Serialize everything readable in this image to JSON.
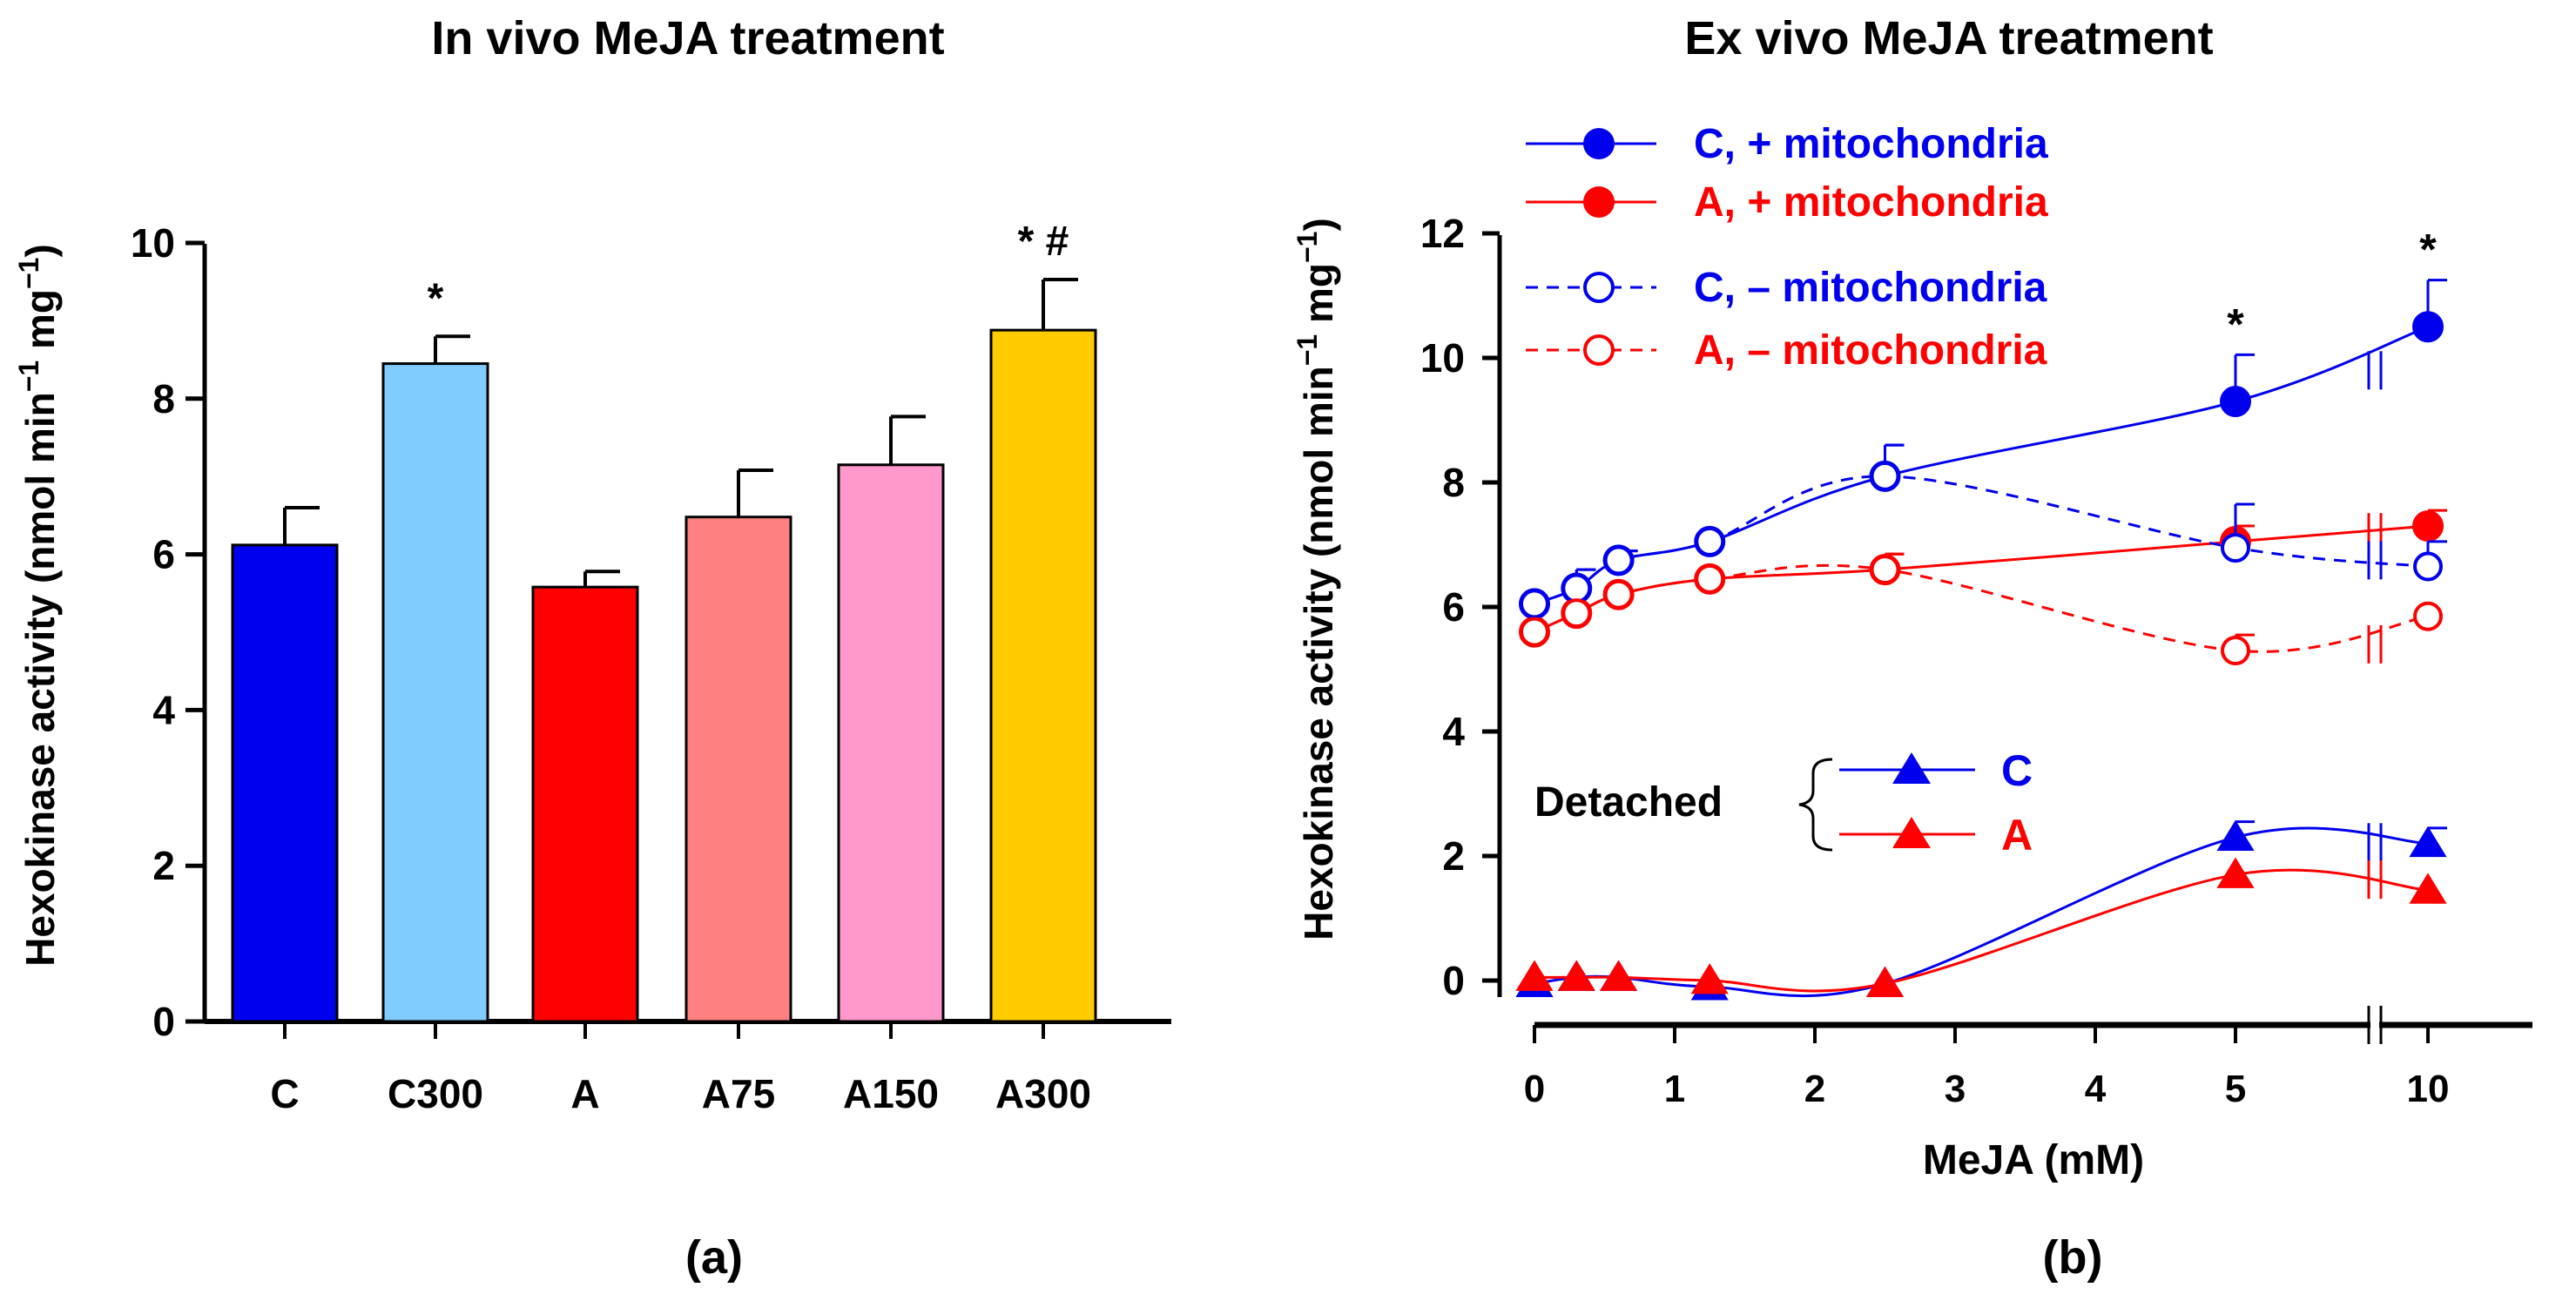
{
  "colors": {
    "blue": "#0000ee",
    "red": "#ff0000",
    "black": "#000000"
  },
  "panel_labels": [
    "(a)",
    "(b)"
  ],
  "chart_data": [
    {
      "type": "bar",
      "title": "In vivo MeJA treatment",
      "xlabel": "",
      "ylabel": "Hexokinase activity (nmol min",
      "ylabel_sup1": "−1",
      "ylabel_mid": " mg",
      "ylabel_sup2": "−1",
      "ylabel_end": ")",
      "ylim": [
        0,
        10
      ],
      "yticks": [
        0,
        2,
        4,
        6,
        8,
        10
      ],
      "categories": [
        "C",
        "C300",
        "A",
        "A75",
        "A150",
        "A300"
      ],
      "values": [
        6.12,
        8.45,
        5.58,
        6.48,
        7.15,
        8.88
      ],
      "errors": [
        0.48,
        0.35,
        0.2,
        0.6,
        0.62,
        0.65
      ],
      "bar_colors": [
        "#0000ee",
        "#80ccff",
        "#ff0000",
        "#ff8080",
        "#ff99cc",
        "#ffcc00"
      ],
      "annotations": [
        "",
        "*",
        "",
        "",
        "",
        "* #"
      ],
      "panel_label": "(a)"
    },
    {
      "type": "line",
      "title": "Ex vivo MeJA treatment",
      "xlabel": "MeJA (mM)",
      "ylabel": "Hexokinase activity (nmol min",
      "ylabel_sup1": "−1",
      "ylabel_mid": " mg",
      "ylabel_sup2": "−1",
      "ylabel_end": ")",
      "ylim": [
        -0.5,
        12
      ],
      "yticks": [
        0,
        2,
        4,
        6,
        8,
        10,
        12
      ],
      "xticks": [
        "0",
        "1",
        "2",
        "3",
        "4",
        "5",
        "10"
      ],
      "x_axis_break_between": [
        5,
        10
      ],
      "x": [
        0,
        0.3,
        0.6,
        1.25,
        2.5,
        5,
        10
      ],
      "series": [
        {
          "name": "C, + mitochondria",
          "style": "solid",
          "marker": "filled-circle",
          "color": "#0000ee",
          "values": [
            6.05,
            6.3,
            6.75,
            7.05,
            8.1,
            9.3,
            10.5
          ],
          "errors": [
            0.1,
            0.3,
            0.15,
            0.1,
            0.5,
            0.75,
            0.75
          ]
        },
        {
          "name": "A, + mitochondria",
          "style": "solid",
          "marker": "filled-circle",
          "color": "#ff0000",
          "values": [
            5.6,
            5.9,
            6.2,
            6.45,
            6.6,
            7.05,
            7.3
          ],
          "errors": [
            0.1,
            0.1,
            0.1,
            0.1,
            0.25,
            0.25,
            0.25
          ]
        },
        {
          "name": "C, – mitochondria",
          "style": "dashed",
          "marker": "open-circle",
          "color": "#0000ee",
          "values": [
            6.05,
            6.3,
            6.75,
            7.05,
            8.1,
            6.95,
            6.65
          ],
          "errors": [
            0.1,
            0.3,
            0.15,
            0.1,
            0.5,
            0.7,
            0.4
          ]
        },
        {
          "name": "A, – mitochondria",
          "style": "dashed",
          "marker": "open-circle",
          "color": "#ff0000",
          "values": [
            5.6,
            5.9,
            6.2,
            6.45,
            6.6,
            5.3,
            5.85
          ],
          "errors": [
            0.1,
            0.1,
            0.1,
            0.1,
            0.25,
            0.25,
            0.1
          ]
        },
        {
          "name": "Detached C",
          "style": "solid",
          "marker": "filled-triangle",
          "color": "#0000ee",
          "values": [
            -0.05,
            0.05,
            0.05,
            -0.1,
            -0.05,
            2.3,
            2.2
          ],
          "errors": [
            0.05,
            0.05,
            0.05,
            0.05,
            0.05,
            0.25,
            0.25
          ]
        },
        {
          "name": "Detached A",
          "style": "solid",
          "marker": "filled-triangle",
          "color": "#ff0000",
          "values": [
            0.05,
            0.05,
            0.05,
            0.0,
            -0.05,
            1.7,
            1.45
          ],
          "errors": [
            0.05,
            0.05,
            0.05,
            0.05,
            0.05,
            0.1,
            0.1
          ]
        }
      ],
      "legend": {
        "position": "top-left",
        "entries": [
          "C, + mitochondria",
          "A, + mitochondria",
          "C, – mitochondria",
          "A, – mitochondria"
        ]
      },
      "detached_legend": {
        "label": "Detached",
        "entries": [
          "C",
          "A"
        ]
      },
      "annotations": [
        {
          "x": 5,
          "text": "*"
        },
        {
          "x": 10,
          "text": "*"
        }
      ],
      "panel_label": "(b)"
    }
  ]
}
